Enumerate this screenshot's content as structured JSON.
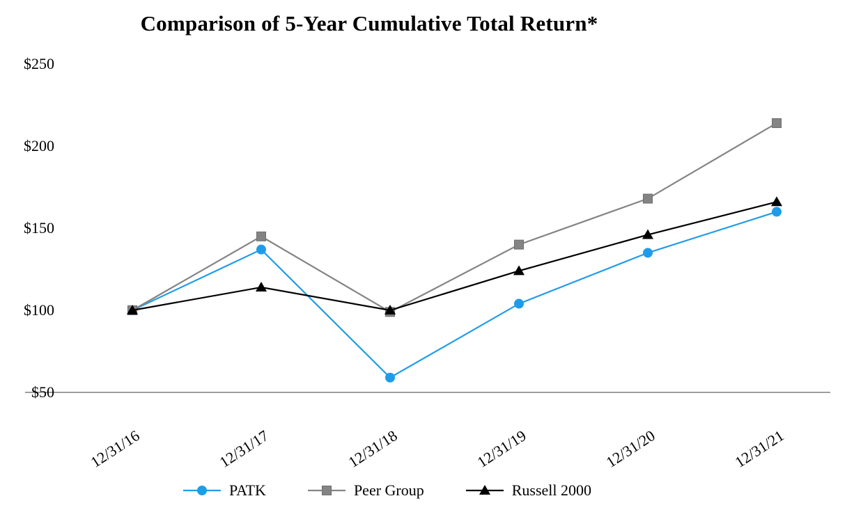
{
  "chart_data": {
    "type": "line",
    "title": "Comparison of 5-Year Cumulative Total Return*",
    "x_labels": [
      "12/31/16",
      "12/31/17",
      "12/31/18",
      "12/31/19",
      "12/31/20",
      "12/31/21"
    ],
    "y_ticks": [
      50,
      100,
      150,
      200,
      250
    ],
    "y_tick_labels": [
      "$50",
      "$100",
      "$150",
      "$200",
      "$250"
    ],
    "ylim": [
      50,
      250
    ],
    "grid": false,
    "legend_position": "bottom",
    "axis_color": "#9d9d9d",
    "series": [
      {
        "name": "PATK",
        "marker": "circle",
        "color": "#1f9ce9",
        "values": [
          100,
          137,
          59,
          104,
          135,
          160
        ]
      },
      {
        "name": "Peer Group",
        "marker": "square",
        "color": "#848484",
        "values": [
          100,
          145,
          99,
          140,
          168,
          214
        ]
      },
      {
        "name": "Russell 2000",
        "marker": "triangle",
        "color": "#000000",
        "values": [
          100,
          114,
          100,
          124,
          146,
          166
        ]
      }
    ]
  }
}
